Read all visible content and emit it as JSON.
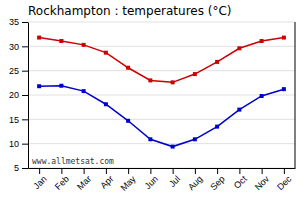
{
  "chart_data": {
    "type": "line",
    "title": "Rockhampton : temperatures (°C)",
    "categories": [
      "Jan",
      "Feb",
      "Mar",
      "Apr",
      "May",
      "Jun",
      "Jul",
      "Aug",
      "Sep",
      "Oct",
      "Nov",
      "Dec"
    ],
    "series": [
      {
        "color": "#cc0000",
        "values": [
          31.8,
          31.1,
          30.3,
          28.7,
          25.6,
          23.0,
          22.6,
          24.3,
          26.8,
          29.6,
          31.1,
          31.8
        ]
      },
      {
        "color": "#0000cc",
        "values": [
          21.8,
          21.9,
          20.8,
          18.1,
          14.7,
          10.9,
          9.4,
          10.9,
          13.5,
          17.0,
          19.8,
          21.2
        ]
      }
    ],
    "ylim": [
      5,
      35
    ],
    "yticks": [
      5,
      10,
      15,
      20,
      25,
      30,
      35
    ],
    "grid": true,
    "marker": "square",
    "annotations": [
      "www.allmetsat.com"
    ]
  }
}
